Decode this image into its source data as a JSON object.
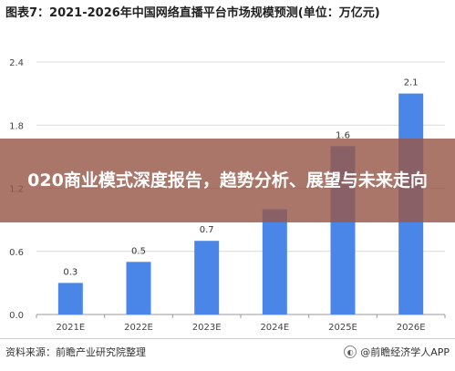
{
  "chart_data": {
    "type": "bar",
    "title": "图表7：2021-2026年中国网络直播平台市场规模预测(单位：万亿元)",
    "categories": [
      "2021E",
      "2022E",
      "2023E",
      "2024E",
      "2025E",
      "2026E"
    ],
    "values": [
      0.3,
      0.5,
      0.7,
      1.0,
      1.6,
      2.1
    ],
    "data_labels": [
      "0.3",
      "0.5",
      "0.7",
      "",
      "1.6",
      "2.1"
    ],
    "yticks": [
      "0.0",
      "0.6",
      "1.2",
      "1.8",
      "2.4"
    ],
    "ylim": [
      0,
      2.4
    ],
    "bar_color": "#4a86e8",
    "grid": true
  },
  "banner": {
    "text": "020商业模式深度报告，趋势分析、展望与未来走向",
    "color": "#965848"
  },
  "footer": {
    "source": "资料来源：前瞻产业研究院整理",
    "brand": "@前瞻经济学人APP",
    "brand_icon": "circle-logo-icon"
  }
}
